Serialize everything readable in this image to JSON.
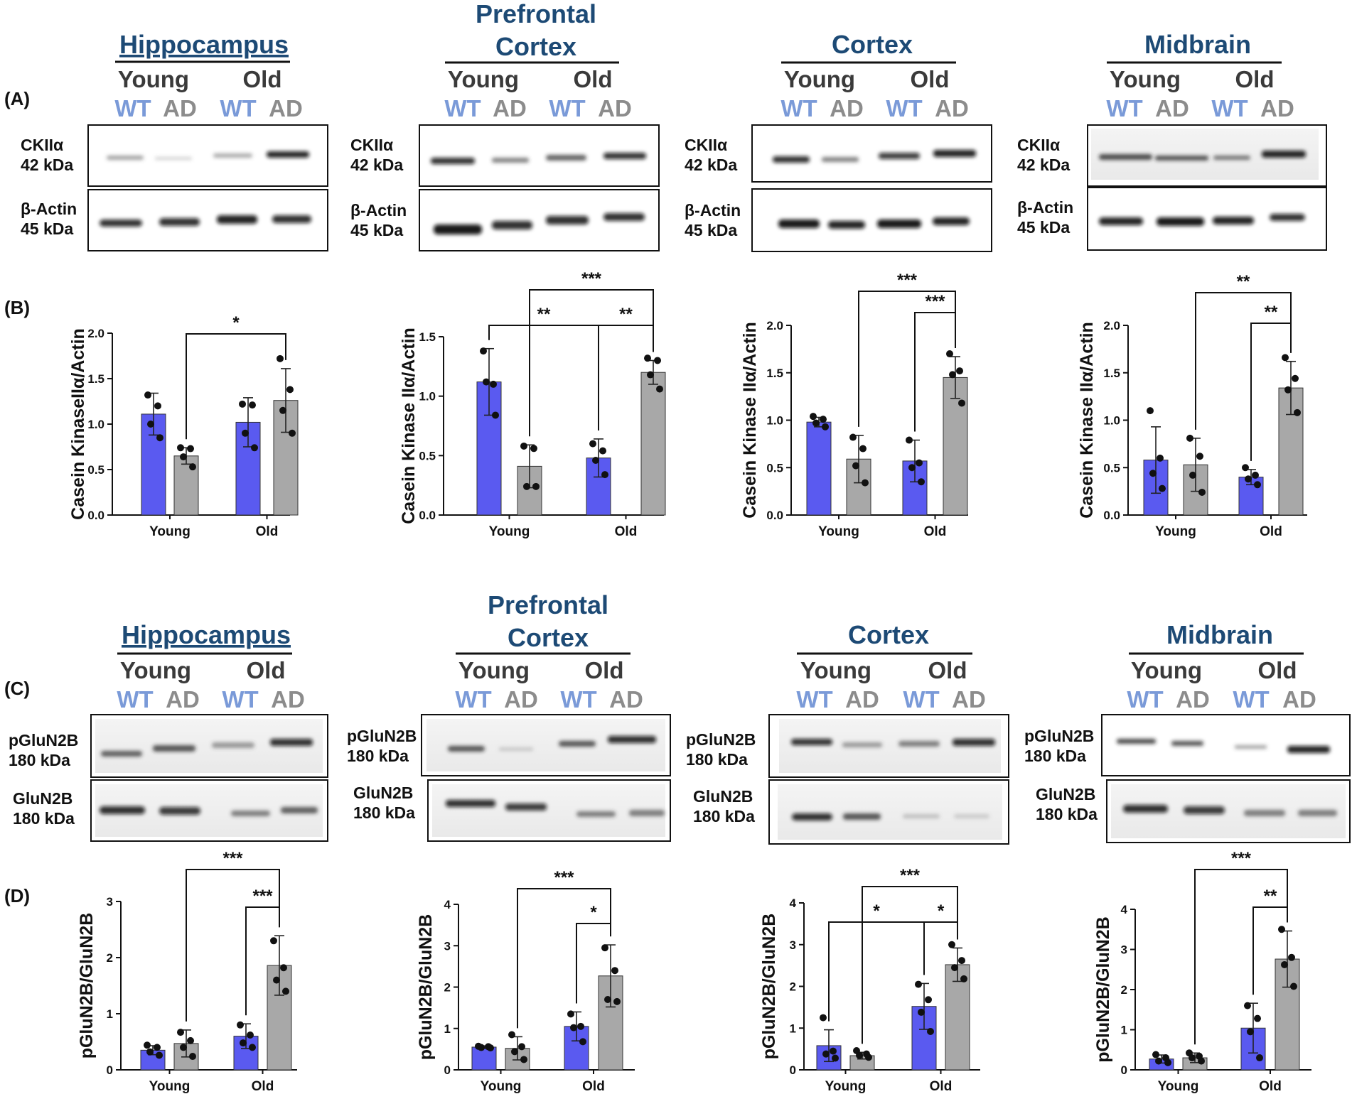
{
  "panel_labels": [
    "(A)",
    "(B)",
    "(C)",
    "(D)"
  ],
  "regions": {
    "hippocampus": "Hippocampus",
    "prefrontal_line1": "Prefrontal",
    "prefrontal_line2": "Cortex",
    "cortex": "Cortex",
    "midbrain": "Midbrain"
  },
  "groups": {
    "young": "Young",
    "old": "Old",
    "wt": "WT",
    "ad": "AD"
  },
  "blots": {
    "ckii_name": "CKIIα",
    "ckii_kda": "42 kDa",
    "actin_name": "β-Actin",
    "actin_kda": "45 kDa",
    "pglun2b_name": "pGluN2B",
    "glun2b_name": "GluN2B",
    "glu_kda": "180 kDa"
  },
  "colors": {
    "wt_bar": "#5a5af0",
    "ad_bar": "#a8a8a8",
    "region_title": "#1d4a75",
    "wt_label": "#7a9ad8",
    "ad_label": "#8c8c8c"
  },
  "chart_data": [
    {
      "type": "bar",
      "title": "Hippocampus",
      "ylabel": "Casein KinaseIIα/Actin",
      "categories": [
        "Young",
        "Old"
      ],
      "ylim": [
        0,
        2.0
      ],
      "yticks": [
        0.0,
        0.5,
        1.0,
        1.5,
        2.0
      ],
      "ytick_labels": [
        "0.0",
        "0.5",
        "1.0",
        "1.5",
        "2.0"
      ],
      "series": [
        {
          "name": "WT",
          "values": [
            1.11,
            1.02
          ],
          "errors": [
            0.23,
            0.27
          ],
          "points": [
            [
              1.32,
              1.2,
              1.0,
              0.85
            ],
            [
              1.22,
              1.21,
              0.9,
              0.74
            ]
          ]
        },
        {
          "name": "AD",
          "values": [
            0.65,
            1.26
          ],
          "errors": [
            0.09,
            0.35
          ],
          "points": [
            [
              0.74,
              0.73,
              0.64,
              0.53
            ],
            [
              1.72,
              1.38,
              1.15,
              0.9
            ]
          ]
        }
      ],
      "significance": [
        {
          "from": [
            0,
            1
          ],
          "to": [
            1,
            1
          ],
          "label": "*"
        }
      ]
    },
    {
      "type": "bar",
      "title": "Prefrontal Cortex",
      "ylabel": "Casein Kinase IIα/Actin",
      "categories": [
        "Young",
        "Old"
      ],
      "ylim": [
        0,
        1.5
      ],
      "yticks": [
        0.0,
        0.5,
        1.0,
        1.5
      ],
      "ytick_labels": [
        "0.0",
        "0.5",
        "1.0",
        "1.5"
      ],
      "series": [
        {
          "name": "WT",
          "values": [
            1.12,
            0.48
          ],
          "errors": [
            0.28,
            0.16
          ],
          "points": [
            [
              1.38,
              1.1,
              1.12,
              0.84
            ],
            [
              0.6,
              0.54,
              0.46,
              0.34
            ]
          ]
        },
        {
          "name": "AD",
          "values": [
            0.41,
            1.2
          ],
          "errors": [
            0.18,
            0.1
          ],
          "points": [
            [
              0.58,
              0.56,
              0.24,
              0.24
            ],
            [
              1.32,
              1.3,
              1.18,
              1.06
            ]
          ]
        }
      ],
      "significance": [
        {
          "from": [
            0,
            0
          ],
          "to": [
            1,
            0
          ],
          "label": "**"
        },
        {
          "from": [
            1,
            0
          ],
          "to": [
            1,
            1
          ],
          "label": "**"
        },
        {
          "from": [
            0,
            1
          ],
          "to": [
            1,
            1
          ],
          "label": "***"
        }
      ]
    },
    {
      "type": "bar",
      "title": "Cortex",
      "ylabel": "Casein Kinase IIα/Actin",
      "categories": [
        "Young",
        "Old"
      ],
      "ylim": [
        0,
        2.0
      ],
      "yticks": [
        0.0,
        0.5,
        1.0,
        1.5,
        2.0
      ],
      "ytick_labels": [
        "0.0",
        "0.5",
        "1.0",
        "1.5",
        "2.0"
      ],
      "series": [
        {
          "name": "WT",
          "values": [
            0.98,
            0.57
          ],
          "errors": [
            0.05,
            0.22
          ],
          "points": [
            [
              1.04,
              1.01,
              0.97,
              0.93
            ],
            [
              0.79,
              0.55,
              0.5,
              0.35
            ]
          ]
        },
        {
          "name": "AD",
          "values": [
            0.59,
            1.45
          ],
          "errors": [
            0.25,
            0.22
          ],
          "points": [
            [
              0.82,
              0.7,
              0.52,
              0.34
            ],
            [
              1.7,
              1.52,
              1.48,
              1.18
            ]
          ]
        }
      ],
      "significance": [
        {
          "from": [
            1,
            0
          ],
          "to": [
            1,
            1
          ],
          "label": "***"
        },
        {
          "from": [
            0,
            1
          ],
          "to": [
            1,
            1
          ],
          "label": "***"
        }
      ]
    },
    {
      "type": "bar",
      "title": "Midbrain",
      "ylabel": "Casein Kinase IIα/Actin",
      "categories": [
        "Young",
        "Old"
      ],
      "ylim": [
        0,
        2.0
      ],
      "yticks": [
        0.0,
        0.5,
        1.0,
        1.5,
        2.0
      ],
      "ytick_labels": [
        "0.0",
        "0.5",
        "1.0",
        "1.5",
        "2.0"
      ],
      "series": [
        {
          "name": "WT",
          "values": [
            0.58,
            0.4
          ],
          "errors": [
            0.35,
            0.08
          ],
          "points": [
            [
              1.1,
              0.6,
              0.44,
              0.28
            ],
            [
              0.5,
              0.42,
              0.38,
              0.32
            ]
          ]
        },
        {
          "name": "AD",
          "values": [
            0.53,
            1.34
          ],
          "errors": [
            0.28,
            0.28
          ],
          "points": [
            [
              0.81,
              0.62,
              0.42,
              0.24
            ],
            [
              1.66,
              1.44,
              1.32,
              1.08
            ]
          ]
        }
      ],
      "significance": [
        {
          "from": [
            1,
            0
          ],
          "to": [
            1,
            1
          ],
          "label": "**"
        },
        {
          "from": [
            0,
            1
          ],
          "to": [
            1,
            1
          ],
          "label": "**"
        }
      ]
    },
    {
      "type": "bar",
      "title": "Hippocampus",
      "ylabel": "pGluN2B/GluN2B",
      "categories": [
        "Young",
        "Old"
      ],
      "ylim": [
        0,
        3
      ],
      "yticks": [
        0,
        1,
        2,
        3
      ],
      "ytick_labels": [
        "0",
        "1",
        "2",
        "3"
      ],
      "series": [
        {
          "name": "WT",
          "values": [
            0.35,
            0.6
          ],
          "errors": [
            0.08,
            0.22
          ],
          "points": [
            [
              0.44,
              0.4,
              0.32,
              0.26
            ],
            [
              0.8,
              0.62,
              0.48,
              0.4
            ]
          ]
        },
        {
          "name": "AD",
          "values": [
            0.47,
            1.86
          ],
          "errors": [
            0.24,
            0.53
          ],
          "points": [
            [
              0.67,
              0.52,
              0.4,
              0.24
            ],
            [
              2.3,
              1.82,
              1.6,
              1.4
            ]
          ]
        }
      ],
      "significance": [
        {
          "from": [
            1,
            0
          ],
          "to": [
            1,
            1
          ],
          "label": "***"
        },
        {
          "from": [
            0,
            1
          ],
          "to": [
            1,
            1
          ],
          "label": "***"
        }
      ]
    },
    {
      "type": "bar",
      "title": "Prefrontal Cortex",
      "ylabel": "pGluN2B/GluN2B",
      "categories": [
        "Young",
        "Old"
      ],
      "ylim": [
        0,
        4
      ],
      "yticks": [
        0,
        1,
        2,
        3,
        4
      ],
      "ytick_labels": [
        "0",
        "1",
        "2",
        "3",
        "4"
      ],
      "series": [
        {
          "name": "WT",
          "values": [
            0.55,
            1.05
          ],
          "errors": [
            0.03,
            0.35
          ],
          "points": [
            [
              0.57,
              0.56,
              0.54,
              0.53
            ],
            [
              1.35,
              1.05,
              1.02,
              0.68
            ]
          ]
        },
        {
          "name": "AD",
          "values": [
            0.52,
            2.27
          ],
          "errors": [
            0.28,
            0.75
          ],
          "points": [
            [
              0.85,
              0.56,
              0.44,
              0.25
            ],
            [
              2.95,
              2.4,
              1.7,
              1.65
            ]
          ]
        }
      ],
      "significance": [
        {
          "from": [
            1,
            0
          ],
          "to": [
            1,
            1
          ],
          "label": "*"
        },
        {
          "from": [
            0,
            1
          ],
          "to": [
            1,
            1
          ],
          "label": "***"
        }
      ]
    },
    {
      "type": "bar",
      "title": "Cortex",
      "ylabel": "pGluN2B/GluN2B",
      "categories": [
        "Young",
        "Old"
      ],
      "ylim": [
        0,
        4
      ],
      "yticks": [
        0,
        1,
        2,
        3,
        4
      ],
      "ytick_labels": [
        "0",
        "1",
        "2",
        "3",
        "4"
      ],
      "series": [
        {
          "name": "WT",
          "values": [
            0.58,
            1.52
          ],
          "errors": [
            0.38,
            0.55
          ],
          "points": [
            [
              1.25,
              0.45,
              0.38,
              0.28
            ],
            [
              2.05,
              1.68,
              1.38,
              0.92
            ]
          ]
        },
        {
          "name": "AD",
          "values": [
            0.34,
            2.52
          ],
          "errors": [
            0.08,
            0.4
          ],
          "points": [
            [
              0.46,
              0.38,
              0.35,
              0.3
            ],
            [
              3.0,
              2.62,
              2.45,
              2.18
            ]
          ]
        }
      ],
      "significance": [
        {
          "from": [
            0,
            0
          ],
          "to": [
            1,
            0
          ],
          "label": "*"
        },
        {
          "from": [
            1,
            0
          ],
          "to": [
            1,
            1
          ],
          "label": "*"
        },
        {
          "from": [
            0,
            1
          ],
          "to": [
            1,
            1
          ],
          "label": "***"
        }
      ]
    },
    {
      "type": "bar",
      "title": "Midbrain",
      "ylabel": "pGluN2B/GluN2B",
      "categories": [
        "Young",
        "Old"
      ],
      "ylim": [
        0,
        4
      ],
      "yticks": [
        0,
        1,
        2,
        3,
        4
      ],
      "ytick_labels": [
        "0",
        "1",
        "2",
        "3",
        "4"
      ],
      "series": [
        {
          "name": "WT",
          "values": [
            0.27,
            1.04
          ],
          "errors": [
            0.1,
            0.62
          ],
          "points": [
            [
              0.38,
              0.3,
              0.22,
              0.18
            ],
            [
              1.6,
              1.28,
              0.95,
              0.3
            ]
          ]
        },
        {
          "name": "AD",
          "values": [
            0.3,
            2.76
          ],
          "errors": [
            0.12,
            0.7
          ],
          "points": [
            [
              0.42,
              0.34,
              0.3,
              0.22
            ],
            [
              3.5,
              2.8,
              2.62,
              2.08
            ]
          ]
        }
      ],
      "significance": [
        {
          "from": [
            1,
            0
          ],
          "to": [
            1,
            1
          ],
          "label": "**"
        },
        {
          "from": [
            0,
            1
          ],
          "to": [
            1,
            1
          ],
          "label": "***"
        }
      ]
    }
  ]
}
